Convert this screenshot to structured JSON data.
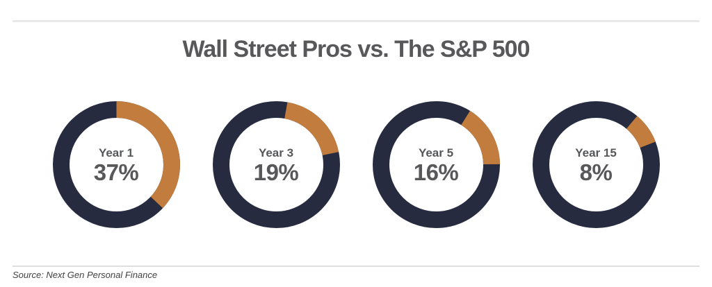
{
  "chart_data": {
    "type": "donut",
    "title": "Wall Street Pros vs. The S&P 500",
    "unit": "percent",
    "legend": "none",
    "donuts": [
      {
        "label": "Year 1",
        "value": 37,
        "value_label": "37%",
        "start_angle_deg": 0
      },
      {
        "label": "Year 3",
        "value": 19,
        "value_label": "19%",
        "start_angle_deg": 10
      },
      {
        "label": "Year 5",
        "value": 16,
        "value_label": "16%",
        "start_angle_deg": 32
      },
      {
        "label": "Year 15",
        "value": 8,
        "value_label": "8%",
        "start_angle_deg": 40
      }
    ],
    "colors": {
      "segment": "#c17c3e",
      "ring": "#262b40",
      "title_text": "#58585a",
      "center_text": "#58585a",
      "divider": "#e9e9e9"
    }
  },
  "footer": {
    "source": "Source: Next Gen Personal Finance"
  }
}
